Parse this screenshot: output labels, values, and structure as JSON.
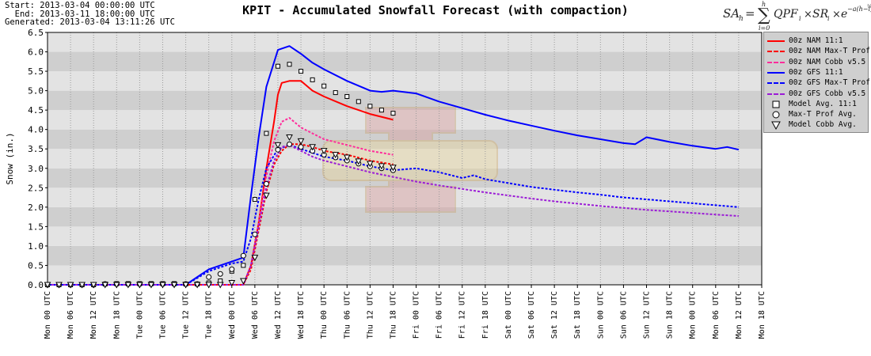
{
  "header": {
    "start": "Start: 2013-03-04 00:00:00 UTC",
    "end": "  End: 2013-03-11 18:00:00 UTC",
    "generated": "Generated: 2013-03-04 13:11:26 UTC",
    "title": "KPIT - Accumulated Snowfall Forecast (with compaction)"
  },
  "colors": {
    "nam": "#ff0000",
    "nam_cobb": "#ff2d9b",
    "gfs": "#0000ff",
    "gfs_cobb": "#9b1bd6",
    "band_dark": "#cfcfcf",
    "band_light": "#e3e3e3"
  },
  "legend": [
    {
      "label": "00z NAM 11:1",
      "style": "solid",
      "color": "#ff0000"
    },
    {
      "label": "00z NAM Max-T Prof",
      "style": "dashed",
      "color": "#ff0000"
    },
    {
      "label": "00z NAM Cobb v5.5",
      "style": "dashed",
      "color": "#ff2d9b"
    },
    {
      "label": "00z GFS 11:1",
      "style": "solid",
      "color": "#0000ff"
    },
    {
      "label": "00z GFS Max-T Prof",
      "style": "dashed",
      "color": "#0000ff"
    },
    {
      "label": "00z GFS Cobb v5.5",
      "style": "dashed",
      "color": "#9b1bd6"
    },
    {
      "label": "Model Avg. 11:1",
      "style": "square",
      "color": "#000000"
    },
    {
      "label": "Max-T Prof Avg.",
      "style": "circle",
      "color": "#000000"
    },
    {
      "label": "Model Cobb Avg.",
      "style": "triangle",
      "color": "#000000"
    }
  ],
  "chart_data": {
    "type": "line",
    "title": "KPIT - Accumulated Snowfall Forecast (with compaction)",
    "ylabel": "Snow (in.)",
    "xlabel": "",
    "ylim": [
      0,
      6.5
    ],
    "xlim": [
      0,
      186
    ],
    "x_unit": "hours since Mon 00 UTC",
    "grid": true,
    "legend_position": "right",
    "yticks": [
      "0.0",
      "0.5",
      "1.0",
      "1.5",
      "2.0",
      "2.5",
      "3.0",
      "3.5",
      "4.0",
      "4.5",
      "5.0",
      "5.5",
      "6.0",
      "6.5"
    ],
    "xticks": [
      "Mon 00 UTC",
      "Mon 06 UTC",
      "Mon 12 UTC",
      "Mon 18 UTC",
      "Tue 00 UTC",
      "Tue 06 UTC",
      "Tue 12 UTC",
      "Tue 18 UTC",
      "Wed 00 UTC",
      "Wed 06 UTC",
      "Wed 12 UTC",
      "Wed 18 UTC",
      "Thu 00 UTC",
      "Thu 06 UTC",
      "Thu 12 UTC",
      "Thu 18 UTC",
      "Fri 00 UTC",
      "Fri 06 UTC",
      "Fri 12 UTC",
      "Fri 18 UTC",
      "Sat 00 UTC",
      "Sat 06 UTC",
      "Sat 12 UTC",
      "Sat 18 UTC",
      "Sun 00 UTC",
      "Sun 06 UTC",
      "Sun 12 UTC",
      "Sun 18 UTC",
      "Mon 00 UTC",
      "Mon 06 UTC",
      "Mon 12 UTC",
      "Mon 18 UTC"
    ],
    "series": [
      {
        "name": "00z NAM 11:1",
        "style": "solid",
        "color": "#ff0000",
        "x": [
          0,
          48,
          51,
          53,
          55,
          57,
          59,
          60,
          61,
          63,
          66,
          69,
          72,
          78,
          84,
          90
        ],
        "y": [
          0,
          0,
          0,
          0.5,
          1.6,
          3.0,
          4.2,
          4.9,
          5.2,
          5.25,
          5.25,
          5.0,
          4.85,
          4.6,
          4.4,
          4.25
        ]
      },
      {
        "name": "00z NAM Max-T Prof",
        "style": "dashed",
        "color": "#ff0000",
        "x": [
          0,
          48,
          51,
          53,
          55,
          57,
          59,
          61,
          63,
          66,
          69,
          72,
          78,
          84,
          90
        ],
        "y": [
          0,
          0,
          0,
          0.4,
          1.4,
          2.4,
          3.1,
          3.45,
          3.62,
          3.62,
          3.55,
          3.45,
          3.35,
          3.2,
          3.1
        ]
      },
      {
        "name": "00z NAM Cobb v5.5",
        "style": "dashed",
        "color": "#ff2d9b",
        "x": [
          0,
          48,
          51,
          53,
          55,
          57,
          59,
          61,
          63,
          66,
          69,
          72,
          78,
          84,
          90
        ],
        "y": [
          0,
          0,
          0,
          0.5,
          1.6,
          2.8,
          3.7,
          4.2,
          4.3,
          4.05,
          3.9,
          3.75,
          3.6,
          3.45,
          3.35
        ]
      },
      {
        "name": "00z GFS 11:1",
        "style": "solid",
        "color": "#0000ff",
        "x": [
          0,
          36,
          42,
          48,
          51,
          53,
          55,
          57,
          60,
          63,
          66,
          69,
          72,
          78,
          84,
          87,
          90,
          96,
          102,
          108,
          114,
          120,
          126,
          132,
          138,
          144,
          150,
          153,
          156,
          162,
          168,
          174,
          177,
          180
        ],
        "y": [
          0,
          0,
          0.4,
          0.6,
          0.7,
          2.3,
          3.8,
          5.1,
          6.05,
          6.15,
          5.95,
          5.72,
          5.55,
          5.25,
          5.0,
          4.97,
          5.0,
          4.93,
          4.72,
          4.55,
          4.38,
          4.23,
          4.1,
          3.97,
          3.85,
          3.75,
          3.65,
          3.62,
          3.8,
          3.68,
          3.58,
          3.5,
          3.55,
          3.48
        ]
      },
      {
        "name": "00z GFS Max-T Prof",
        "style": "dashed",
        "color": "#0000ff",
        "x": [
          0,
          36,
          42,
          48,
          51,
          53,
          55,
          57,
          60,
          63,
          66,
          69,
          72,
          78,
          84,
          90,
          96,
          102,
          108,
          111,
          114,
          120,
          126,
          132,
          138,
          144,
          150,
          156,
          162,
          168,
          174,
          180
        ],
        "y": [
          0,
          0,
          0.35,
          0.55,
          0.6,
          1.2,
          2.2,
          3.0,
          3.5,
          3.6,
          3.5,
          3.4,
          3.3,
          3.2,
          3.05,
          2.95,
          3.0,
          2.9,
          2.75,
          2.82,
          2.72,
          2.62,
          2.52,
          2.45,
          2.38,
          2.32,
          2.25,
          2.2,
          2.15,
          2.1,
          2.05,
          2.0
        ]
      },
      {
        "name": "00z GFS Cobb v5.5",
        "style": "dashed",
        "color": "#9b1bd6",
        "x": [
          0,
          48,
          51,
          53,
          55,
          57,
          59,
          61,
          63,
          66,
          69,
          72,
          78,
          84,
          90,
          96,
          102,
          108,
          114,
          120,
          126,
          132,
          138,
          144,
          150,
          156,
          162,
          168,
          174,
          180
        ],
        "y": [
          0,
          0,
          0,
          0.5,
          1.5,
          2.5,
          3.2,
          3.55,
          3.6,
          3.45,
          3.3,
          3.2,
          3.05,
          2.9,
          2.78,
          2.66,
          2.56,
          2.47,
          2.38,
          2.3,
          2.22,
          2.15,
          2.09,
          2.03,
          1.98,
          1.93,
          1.89,
          1.85,
          1.81,
          1.77
        ]
      },
      {
        "name": "Model Avg. 11:1",
        "style": "square",
        "color": "#000000",
        "x": [
          0,
          3,
          6,
          9,
          12,
          15,
          18,
          21,
          24,
          27,
          30,
          33,
          36,
          39,
          42,
          45,
          48,
          51,
          54,
          57,
          60,
          63,
          66,
          69,
          72,
          75,
          78,
          81,
          84,
          87,
          90
        ],
        "y": [
          0,
          0,
          0,
          0,
          0,
          0.02,
          0.03,
          0.03,
          0.03,
          0.03,
          0.03,
          0.03,
          0.02,
          0.02,
          0.05,
          0.1,
          0.35,
          0.5,
          2.2,
          3.9,
          5.63,
          5.68,
          5.5,
          5.28,
          5.12,
          4.95,
          4.85,
          4.72,
          4.6,
          4.5,
          4.42
        ]
      },
      {
        "name": "Max-T Prof Avg.",
        "style": "circle",
        "color": "#000000",
        "x": [
          0,
          3,
          6,
          9,
          12,
          15,
          18,
          21,
          24,
          27,
          30,
          33,
          36,
          39,
          42,
          45,
          48,
          51,
          54,
          57,
          60,
          63,
          66,
          69,
          72,
          75,
          78,
          81,
          84,
          87,
          90
        ],
        "y": [
          0,
          0,
          0,
          0,
          0,
          0.02,
          0.02,
          0.02,
          0.02,
          0.02,
          0.02,
          0.02,
          0.02,
          0.02,
          0.2,
          0.28,
          0.4,
          0.75,
          1.3,
          2.6,
          3.48,
          3.62,
          3.55,
          3.45,
          3.35,
          3.28,
          3.2,
          3.12,
          3.05,
          3.0,
          2.95
        ]
      },
      {
        "name": "Model Cobb Avg.",
        "style": "triangle",
        "color": "#000000",
        "x": [
          0,
          3,
          6,
          9,
          12,
          15,
          18,
          21,
          24,
          27,
          30,
          33,
          36,
          39,
          42,
          45,
          48,
          51,
          54,
          57,
          60,
          63,
          66,
          69,
          72,
          75,
          78,
          81,
          84,
          87,
          90
        ],
        "y": [
          0,
          0,
          0,
          0,
          0,
          0,
          0,
          0,
          0,
          0,
          0,
          0,
          0,
          0,
          0,
          0,
          0.05,
          0.1,
          0.7,
          2.3,
          3.6,
          3.8,
          3.7,
          3.55,
          3.45,
          3.35,
          3.28,
          3.18,
          3.12,
          3.06,
          3.02
        ]
      }
    ]
  }
}
